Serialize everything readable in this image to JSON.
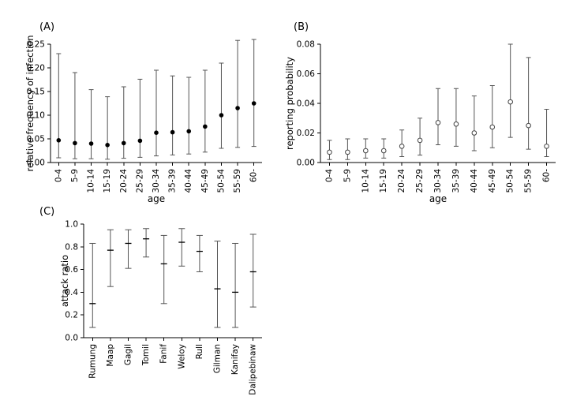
{
  "figure": {
    "background": "#ffffff",
    "axis_color": "#000000",
    "errorbar_color": "#555555"
  },
  "chart_data": [
    {
      "type": "scatter",
      "name": "relative-frequency-of-infection",
      "title": "(A)",
      "xlabel": "age",
      "ylabel": "relative frequency of infection",
      "categories": [
        "0-4",
        "5-9",
        "10-14",
        "15-19",
        "20-24",
        "25-29",
        "30-34",
        "35-39",
        "40-44",
        "45-49",
        "50-54",
        "55-59",
        "60-"
      ],
      "values": [
        0.047,
        0.041,
        0.04,
        0.037,
        0.041,
        0.046,
        0.063,
        0.064,
        0.066,
        0.076,
        0.1,
        0.115,
        0.125
      ],
      "ci_low": [
        0.01,
        0.008,
        0.008,
        0.007,
        0.009,
        0.011,
        0.014,
        0.016,
        0.018,
        0.022,
        0.03,
        0.032,
        0.034
      ],
      "ci_high": [
        0.23,
        0.19,
        0.154,
        0.139,
        0.16,
        0.176,
        0.195,
        0.183,
        0.18,
        0.195,
        0.21,
        0.258,
        0.26
      ],
      "ylim": [
        0,
        0.25
      ],
      "ytick_values": [
        0,
        0.05,
        0.1,
        0.15,
        0.2,
        0.25
      ],
      "ytick_labels": [
        "0.00",
        "0.05",
        "0.10",
        "0.15",
        "0.20",
        "0.25"
      ],
      "marker": "filled-circle",
      "grid": false,
      "legend": "none"
    },
    {
      "type": "scatter",
      "name": "reporting-probability",
      "title": "(B)",
      "xlabel": "age",
      "ylabel": "reporting probability",
      "categories": [
        "0-4",
        "5-9",
        "10-14",
        "15-19",
        "20-24",
        "25-29",
        "30-34",
        "35-39",
        "40-44",
        "45-49",
        "50-54",
        "55-59",
        "60-"
      ],
      "values": [
        0.007,
        0.007,
        0.008,
        0.008,
        0.011,
        0.015,
        0.027,
        0.026,
        0.02,
        0.024,
        0.041,
        0.025,
        0.011
      ],
      "ci_low": [
        0.002,
        0.002,
        0.003,
        0.003,
        0.004,
        0.005,
        0.012,
        0.011,
        0.008,
        0.01,
        0.017,
        0.009,
        0.004
      ],
      "ci_high": [
        0.015,
        0.016,
        0.016,
        0.016,
        0.022,
        0.03,
        0.05,
        0.05,
        0.045,
        0.052,
        0.08,
        0.071,
        0.036
      ],
      "ylim": [
        0,
        0.08
      ],
      "ytick_values": [
        0,
        0.02,
        0.04,
        0.06,
        0.08
      ],
      "ytick_labels": [
        "0.00",
        "0.02",
        "0.04",
        "0.06",
        "0.08"
      ],
      "marker": "open-circle",
      "grid": false,
      "legend": "none"
    },
    {
      "type": "scatter",
      "name": "attack-ratio-by-village",
      "title": "(C)",
      "xlabel": "",
      "ylabel": "attack ratio",
      "categories": [
        "Rumung",
        "Maap",
        "Gagil",
        "Tomil",
        "Fanif",
        "Weloy",
        "Rull",
        "Gilman",
        "Kanifay",
        "Dalipebinaw"
      ],
      "values": [
        0.3,
        0.77,
        0.83,
        0.87,
        0.65,
        0.84,
        0.76,
        0.43,
        0.4,
        0.58
      ],
      "ci_low": [
        0.09,
        0.45,
        0.61,
        0.71,
        0.3,
        0.63,
        0.58,
        0.09,
        0.09,
        0.27
      ],
      "ci_high": [
        0.83,
        0.95,
        0.95,
        0.96,
        0.9,
        0.96,
        0.9,
        0.85,
        0.83,
        0.91
      ],
      "ylim": [
        0,
        1.0
      ],
      "ytick_values": [
        0,
        0.2,
        0.4,
        0.6,
        0.8,
        1.0
      ],
      "ytick_labels": [
        "0.0",
        "0.2",
        "0.4",
        "0.6",
        "0.8",
        "1.0"
      ],
      "marker": "dash",
      "grid": false,
      "legend": "none"
    }
  ]
}
